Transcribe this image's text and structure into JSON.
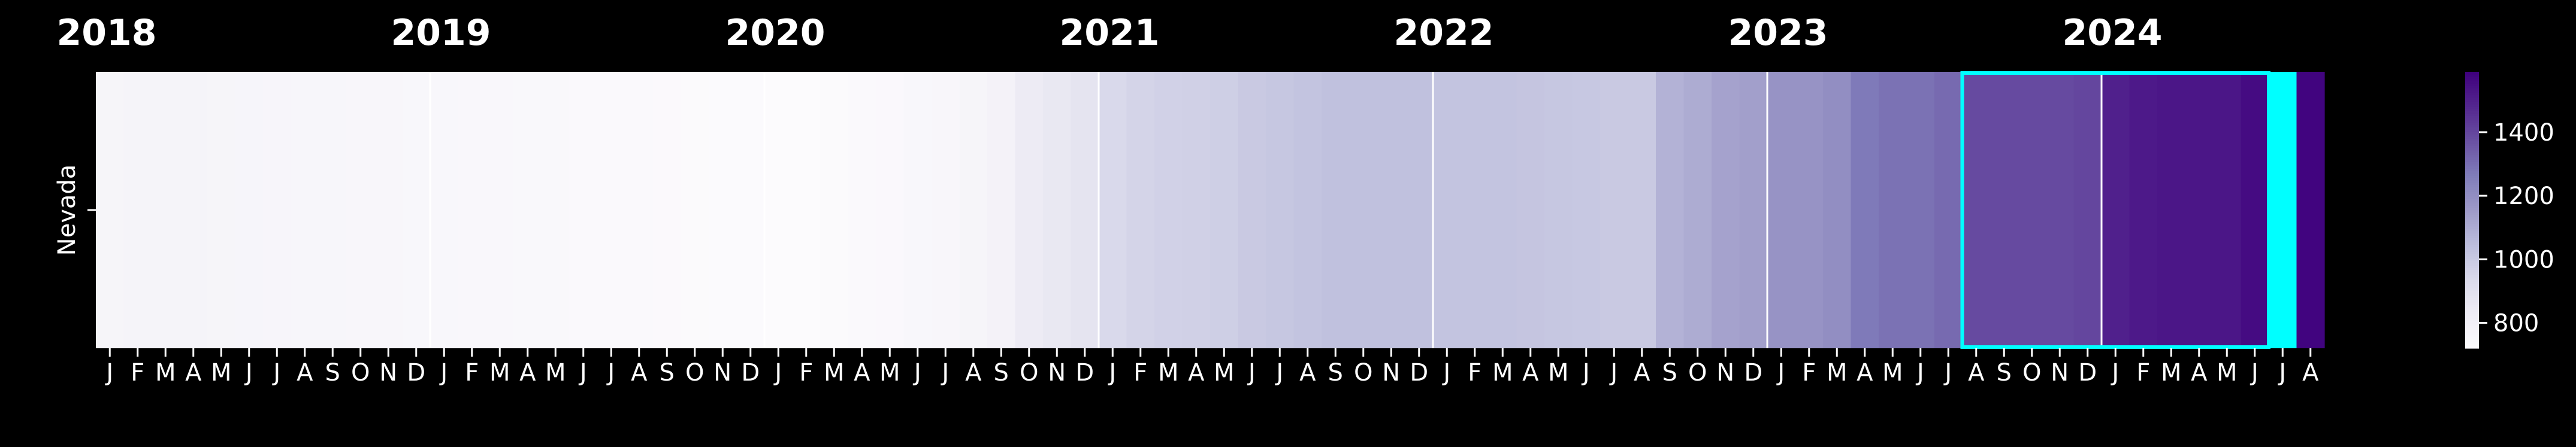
{
  "chart_data": {
    "type": "heatmap",
    "title": "",
    "xlabel": "",
    "ylabel": "",
    "rows": [
      "Nevada"
    ],
    "year_labels": [
      "2018",
      "2019",
      "2020",
      "2021",
      "2022",
      "2023",
      "2024"
    ],
    "month_ticks": [
      "J",
      "F",
      "M",
      "A",
      "M",
      "J",
      "J",
      "A",
      "S",
      "O",
      "N",
      "D",
      "J",
      "F",
      "M",
      "A",
      "M",
      "J",
      "J",
      "A",
      "S",
      "O",
      "N",
      "D",
      "J",
      "F",
      "M",
      "A",
      "M",
      "J",
      "J",
      "A",
      "S",
      "O",
      "N",
      "D",
      "J",
      "F",
      "M",
      "A",
      "M",
      "J",
      "J",
      "A",
      "S",
      "O",
      "N",
      "D",
      "J",
      "F",
      "M",
      "A",
      "M",
      "J",
      "J",
      "A",
      "S",
      "O",
      "N",
      "D",
      "J",
      "F",
      "M",
      "A",
      "M",
      "J",
      "J",
      "A",
      "S",
      "O",
      "N",
      "D",
      "J",
      "F",
      "M",
      "A",
      "M",
      "J",
      "J",
      "A"
    ],
    "start_period": "2018-01",
    "end_period": "2024-08",
    "values": [
      770,
      778,
      776,
      775,
      768,
      767,
      765,
      762,
      760,
      757,
      755,
      752,
      750,
      748,
      748,
      745,
      742,
      738,
      735,
      733,
      732,
      728,
      726,
      725,
      720,
      722,
      728,
      735,
      740,
      750,
      755,
      770,
      790,
      840,
      860,
      880,
      940,
      960,
      970,
      975,
      980,
      1000,
      1010,
      1020,
      1030,
      1030,
      1030,
      1030,
      1020,
      1020,
      1020,
      1015,
      1010,
      1005,
      1000,
      1000,
      1080,
      1100,
      1130,
      1140,
      1180,
      1180,
      1200,
      1270,
      1290,
      1290,
      1310,
      1390,
      1390,
      1390,
      1390,
      1400,
      1500,
      1520,
      1530,
      1530,
      1530,
      1560,
      null,
      1580
    ],
    "highlight": {
      "start_period": "2023-08",
      "end_period": "2024-06",
      "color": "#00ffff"
    },
    "missing_color": "#00ffff",
    "colorbar": {
      "ticks": [
        800,
        1000,
        1200,
        1400
      ],
      "vmin": 720,
      "vmax": 1590,
      "cmap": "Purples"
    },
    "grid": false
  }
}
